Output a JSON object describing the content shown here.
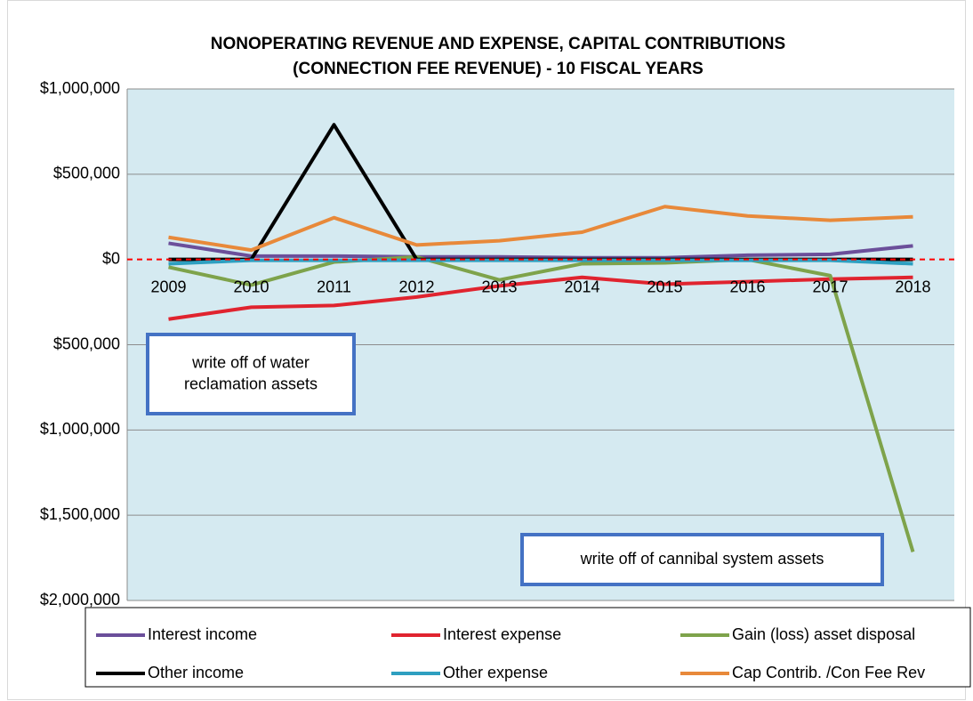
{
  "chart_data": {
    "type": "line",
    "title": [
      "NONOPERATING REVENUE AND EXPENSE, CAPITAL CONTRIBUTIONS",
      "(CONNECTION FEE REVENUE) - 10 FISCAL YEARS"
    ],
    "categories": [
      "2009",
      "2010",
      "2011",
      "2012",
      "2013",
      "2014",
      "2015",
      "2016",
      "2017",
      "2018"
    ],
    "series": [
      {
        "name": "Interest income",
        "color": "#6b4f9a",
        "values": [
          95000,
          20000,
          20000,
          15000,
          15000,
          10000,
          10000,
          25000,
          30000,
          80000
        ]
      },
      {
        "name": "Interest expense",
        "color": "#e0242f",
        "values": [
          -350000,
          -280000,
          -270000,
          -220000,
          -155000,
          -105000,
          -145000,
          -130000,
          -115000,
          -105000
        ]
      },
      {
        "name": "Gain (loss) asset disposal",
        "color": "#7ea34b",
        "values": [
          -45000,
          -150000,
          -15000,
          15000,
          -120000,
          -25000,
          -20000,
          0,
          -95000,
          -1715000
        ]
      },
      {
        "name": "Other income",
        "color": "#000000",
        "values": [
          0,
          0,
          790000,
          0,
          0,
          0,
          0,
          0,
          0,
          0
        ]
      },
      {
        "name": "Other expense",
        "color": "#2e9fc0",
        "values": [
          -25000,
          -5000,
          -5000,
          -5000,
          -5000,
          -5000,
          -5000,
          -5000,
          -5000,
          -25000
        ]
      },
      {
        "name": "Cap Contrib. /Con Fee Rev",
        "color": "#e8893a",
        "values": [
          130000,
          55000,
          245000,
          85000,
          110000,
          160000,
          310000,
          255000,
          230000,
          250000
        ]
      }
    ],
    "ylim": [
      -2000000,
      1000000
    ],
    "yticks": [
      {
        "value": 1000000,
        "label": "$1,000,000"
      },
      {
        "value": 500000,
        "label": "$500,000"
      },
      {
        "value": 0,
        "label": "$0"
      },
      {
        "value": -500000,
        "label": "$500,000"
      },
      {
        "value": -1000000,
        "label": "$1,000,000"
      },
      {
        "value": -1500000,
        "label": "$1,500,000"
      },
      {
        "value": -2000000,
        "label": "$2,000,000"
      }
    ],
    "negative_tick_color": "#ff0000",
    "zero_line_color": "#ff0000",
    "grid": true,
    "plot_background": "#d5eaf1",
    "legend": "bottom",
    "annotations": [
      {
        "lines": [
          "write off of water",
          "reclamation assets"
        ]
      },
      {
        "lines": [
          "write off of cannibal system assets"
        ]
      }
    ]
  }
}
